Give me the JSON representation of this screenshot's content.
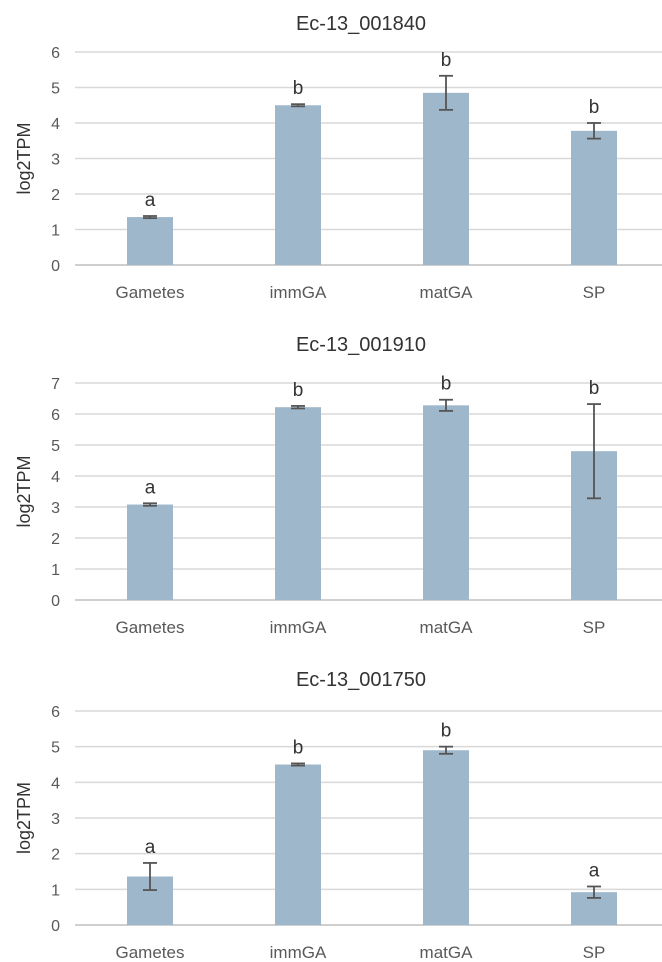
{
  "chart_data": [
    {
      "type": "bar",
      "title": "Ec-13_001840",
      "ylabel": "log2TPM",
      "xlabel": "",
      "categories": [
        "Gametes",
        "immGA",
        "matGA",
        "SP"
      ],
      "values": [
        1.35,
        4.5,
        4.85,
        3.78
      ],
      "errors": [
        0.03,
        0.03,
        0.48,
        0.22
      ],
      "significance": [
        "a",
        "b",
        "b",
        "b"
      ],
      "ylim": [
        0,
        6
      ],
      "yticks": [
        "0",
        "1",
        "2",
        "3",
        "4",
        "5",
        "6"
      ],
      "grid": true,
      "bar_color": "#9fb7cb"
    },
    {
      "type": "bar",
      "title": "Ec-13_001910",
      "ylabel": "log2TPM",
      "xlabel": "",
      "categories": [
        "Gametes",
        "immGA",
        "matGA",
        "SP"
      ],
      "values": [
        3.08,
        6.22,
        6.28,
        4.8
      ],
      "errors": [
        0.04,
        0.04,
        0.18,
        1.52
      ],
      "significance": [
        "a",
        "b",
        "b",
        "b"
      ],
      "ylim": [
        0,
        7
      ],
      "yticks": [
        "0",
        "1",
        "2",
        "3",
        "4",
        "5",
        "6",
        "7"
      ],
      "grid": true,
      "bar_color": "#9fb7cb"
    },
    {
      "type": "bar",
      "title": "Ec-13_001750",
      "ylabel": "log2TPM",
      "xlabel": "",
      "categories": [
        "Gametes",
        "immGA",
        "matGA",
        "SP"
      ],
      "values": [
        1.36,
        4.5,
        4.9,
        0.92
      ],
      "errors": [
        0.38,
        0.03,
        0.1,
        0.16
      ],
      "significance": [
        "a",
        "b",
        "b",
        "a"
      ],
      "ylim": [
        0,
        6
      ],
      "yticks": [
        "0",
        "1",
        "2",
        "3",
        "4",
        "5",
        "6"
      ],
      "grid": true,
      "bar_color": "#9fb7cb"
    }
  ]
}
